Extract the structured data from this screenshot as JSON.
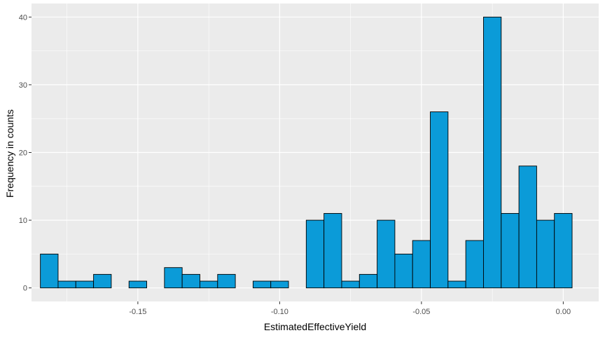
{
  "chart_data": {
    "type": "bar",
    "subtype": "histogram",
    "title": "",
    "xlabel": "EstimatedEffectiveYield",
    "ylabel": "Frequency in counts",
    "bin_width": 0.00625,
    "bin_centers": [
      -0.18125,
      -0.175,
      -0.16875,
      -0.1625,
      -0.15625,
      -0.15,
      -0.14375,
      -0.1375,
      -0.13125,
      -0.125,
      -0.11875,
      -0.1125,
      -0.10625,
      -0.1,
      -0.09375,
      -0.0875,
      -0.08125,
      -0.075,
      -0.06875,
      -0.0625,
      -0.05625,
      -0.05,
      -0.04375,
      -0.0375,
      -0.03125,
      -0.025,
      -0.01875,
      -0.0125,
      -0.00625,
      0.0
    ],
    "values": [
      5,
      1,
      1,
      2,
      0,
      1,
      0,
      3,
      2,
      1,
      2,
      0,
      1,
      1,
      0,
      10,
      11,
      1,
      2,
      10,
      5,
      7,
      26,
      1,
      7,
      40,
      11,
      18,
      10,
      11
    ],
    "xlim": [
      -0.1875,
      0.0125
    ],
    "ylim": [
      -2,
      42
    ],
    "x_ticks": [
      -0.15,
      -0.1,
      -0.05,
      0.0
    ],
    "x_tick_labels": [
      "-0.15",
      "-0.10",
      "-0.05",
      "0.00"
    ],
    "y_ticks": [
      0,
      10,
      20,
      30,
      40
    ],
    "y_tick_labels": [
      "0",
      "10",
      "20",
      "30",
      "40"
    ],
    "grid": true,
    "legend": "none",
    "colors": {
      "bar_fill": "#0B9BD8",
      "bar_stroke": "#000000",
      "panel_bg": "#EBEBEB",
      "grid_major": "#FFFFFF",
      "text": "#4D4D4D",
      "axis_title": "#000000"
    }
  }
}
